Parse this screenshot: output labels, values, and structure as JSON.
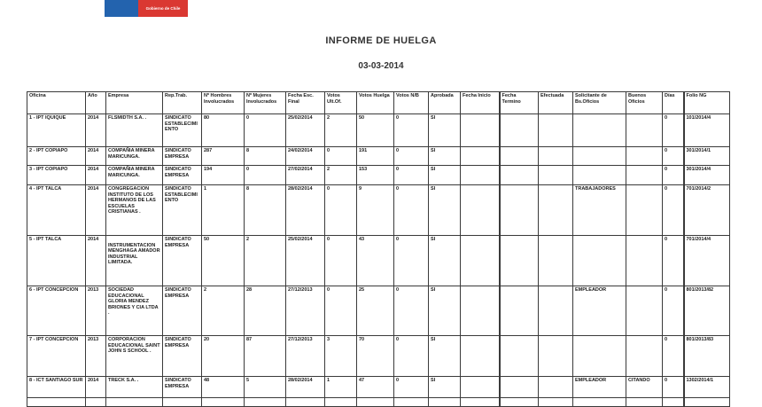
{
  "logo": {
    "text": "Gobierno de Chile"
  },
  "colors": {
    "logo_blue": "#2363AE",
    "logo_red": "#DA3832"
  },
  "title": "INFORME DE HUELGA",
  "report_date": "03-03-2014",
  "table": {
    "headers": [
      "Oficina",
      "Año",
      "Empresa",
      "Rep.Trab.",
      "Nº Hombres Involucrados",
      "Nº Mujeres Involucrados",
      "Fecha Esc. Final",
      "Votos Ult.Of.",
      "Votos Huelga",
      "Votos N/B",
      "Aprobada",
      "Fecha Inicio",
      "Fecha Termino",
      "Efectuada",
      "Solicitante de Bs.Oficios",
      "Buenos Oficios",
      "Días",
      "Folio NG"
    ],
    "rows": [
      [
        "1 - IPT IQUIQUE",
        "2014",
        "FLSMIDTH S.A. .",
        "SINDICATO ESTABLECIMIENTO",
        "80",
        "0",
        "25/02/2014",
        "2",
        "50",
        "0",
        "SI",
        "",
        "",
        "",
        "",
        "",
        "0",
        "101/2014/4"
      ],
      [
        "2 - IPT COPIAPO",
        "2014",
        "COMPAÑIA MINERA MARICUNGA.",
        "SINDICATO EMPRESA",
        "287",
        "8",
        "24/02/2014",
        "0",
        "191",
        "0",
        "SI",
        "",
        "",
        "",
        "",
        "",
        "0",
        "301/2014/1"
      ],
      [
        "3 - IPT COPIAPO",
        "2014",
        "COMPAÑIA MINERA MARICUNGA.",
        "SINDICATO EMPRESA",
        "194",
        "0",
        "27/02/2014",
        "2",
        "153",
        "0",
        "SI",
        "",
        "",
        "",
        "",
        "",
        "0",
        "301/2014/4"
      ],
      [
        "4 - IPT TALCA",
        "2014",
        "CONGREGACION INSTITUTO DE LOS HERMANOS DE LAS ESCUELAS CRISTIANAS .",
        "SINDICATO ESTABLECIMIENTO",
        "1",
        "8",
        "28/02/2014",
        "0",
        "9",
        "0",
        "SI",
        "",
        "",
        "",
        "TRABAJADORES",
        "",
        "0",
        "701/2014/2"
      ],
      [
        "5 - IPT TALCA",
        "2014",
        "\nINSTRUMENTACION MENGHAGA AMADOR INDUSTRIAL LIMITADA.",
        "SINDICATO EMPRESA",
        "50",
        "2",
        "25/02/2014",
        "0",
        "43",
        "0",
        "SI",
        "",
        "",
        "",
        "",
        "",
        "0",
        "701/2014/4"
      ],
      [
        "6 - IPT CONCEPCION",
        "2013",
        "SOCIEDAD EDUCACIONAL GLORIA MENDEZ BRIONES Y CIA LTDA .",
        "SINDICATO EMPRESA",
        "2",
        "28",
        "27/12/2013",
        "0",
        "25",
        "0",
        "SI",
        "",
        "",
        "",
        "EMPLEADOR",
        "",
        "0",
        "801/2013/82"
      ],
      [
        "7 - IPT CONCEPCION",
        "2013",
        "CORPORACION EDUCACIONAL SAINT JOHN S SCHOOL .",
        "SINDICATO EMPRESA",
        "20",
        "87",
        "27/12/2013",
        "3",
        "70",
        "0",
        "SI",
        "",
        "",
        "",
        "",
        "",
        "0",
        "801/2013/83"
      ],
      [
        "8 - ICT SANTIAGO SUR",
        "2014",
        "TRECK S.A. .",
        "SINDICATO EMPRESA",
        "48",
        "5",
        "28/02/2014",
        "1",
        "47",
        "0",
        "SI",
        "",
        "",
        "",
        "EMPLEADOR",
        "CITANDO",
        "0",
        "1302/2014/1"
      ],
      [
        "",
        "",
        "",
        "",
        "",
        "",
        "",
        "",
        "",
        "",
        "",
        "",
        "",
        "",
        "",
        "",
        "",
        ""
      ]
    ]
  }
}
